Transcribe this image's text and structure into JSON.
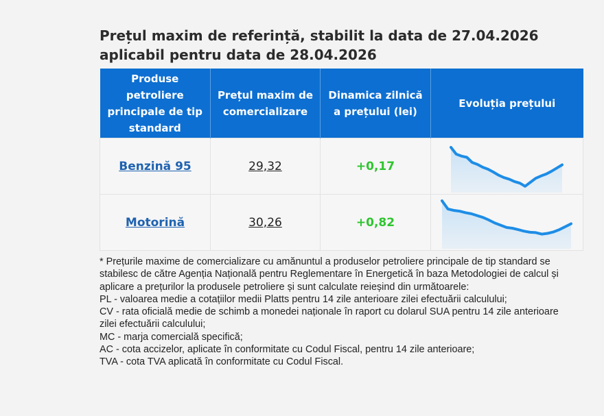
{
  "header": {
    "title_line1": "Prețul maxim de referință, stabilit la data de 27.04.2026",
    "title_line2": "aplicabil pentru data de 28.04.2026"
  },
  "table": {
    "columns": [
      "Produse petroliere principale de tip standard",
      "Prețul maxim de comercializare",
      "Dinamica zilnică a prețului (lei)",
      "Evoluția prețului"
    ],
    "rows": [
      {
        "product": "Benzină 95",
        "price": "29,32",
        "change": "+0,17",
        "trend": [
          1.0,
          0.83,
          0.78,
          0.75,
          0.62,
          0.57,
          0.5,
          0.45,
          0.38,
          0.3,
          0.24,
          0.2,
          0.14,
          0.1,
          0.02,
          0.12,
          0.22,
          0.28,
          0.33,
          0.4,
          0.48,
          0.56
        ]
      },
      {
        "product": "Motorină",
        "price": "30,26",
        "change": "+0,82",
        "trend": [
          1.0,
          0.78,
          0.74,
          0.72,
          0.68,
          0.65,
          0.6,
          0.55,
          0.48,
          0.4,
          0.34,
          0.28,
          0.26,
          0.22,
          0.18,
          0.15,
          0.14,
          0.1,
          0.12,
          0.16,
          0.22,
          0.3,
          0.38
        ]
      }
    ]
  },
  "notes": [
    "* Prețurile maxime de comercializare cu amănuntul a produselor petroliere principale de tip standard se stabilesc de către Agenția Națională pentru Reglementare în Energetică în baza Metodologiei de calcul și aplicare a prețurilor la produsele petroliere și sunt calculate reieșind din următoarele:",
    "PL - valoarea medie a cotațiilor medii Platts pentru 14 zile anterioare zilei efectuării calculului;",
    "CV - rata oficială medie de schimb a monedei naționale în raport cu dolarul SUA pentru 14 zile anterioare zilei efectuării calculului;",
    "MC - marja comercială specifică;",
    "AC - cota accizelor, aplicate în conformitate cu Codul Fiscal, pentru 14 zile anterioare;",
    "TVA - cota TVA aplicată în conformitate cu Codul Fiscal."
  ],
  "colors": {
    "header_bg": "#0d6fd1",
    "link": "#1f63b0",
    "positive": "#2fc52f",
    "spark_line": "#1e8de6",
    "spark_fill": "#bcdcf7"
  }
}
